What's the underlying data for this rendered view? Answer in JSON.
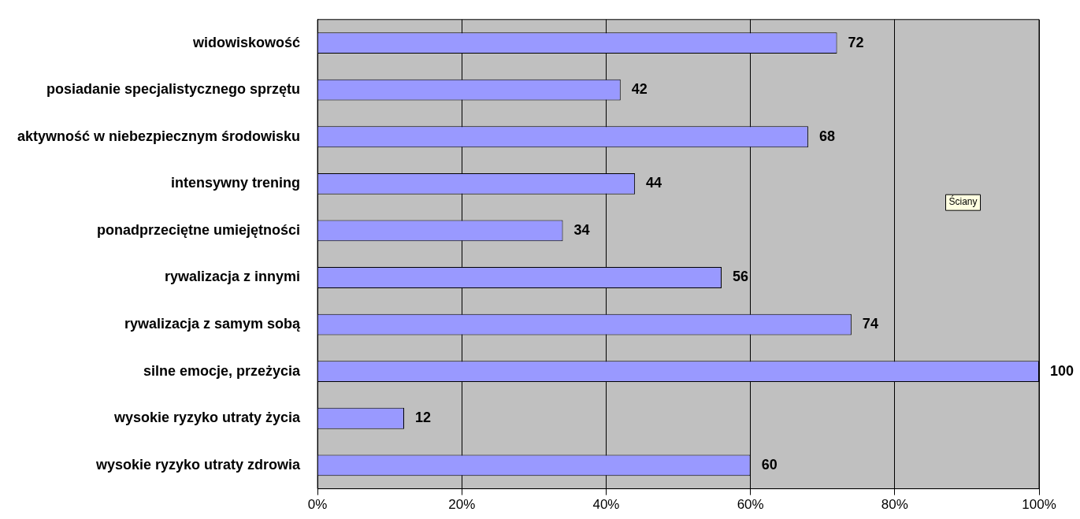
{
  "chart_data": {
    "type": "bar",
    "orientation": "horizontal",
    "categories": [
      "widowiskowość",
      "posiadanie specjalistycznego sprzętu",
      "aktywność w niebezpiecznym środowisku",
      "intensywny trening",
      "ponadprzeciętne umiejętności",
      "rywalizacja z innymi",
      "rywalizacja z samym sobą",
      "silne emocje, przeżycia",
      "wysokie ryzyko utraty życia",
      "wysokie ryzyko utraty zdrowia"
    ],
    "values": [
      72,
      42,
      68,
      44,
      34,
      56,
      74,
      100,
      12,
      60
    ],
    "color": "#9999ff",
    "xlim": [
      0,
      100
    ],
    "xticks": [
      {
        "value": 0,
        "label": "0%"
      },
      {
        "value": 20,
        "label": "20%"
      },
      {
        "value": 40,
        "label": "40%"
      },
      {
        "value": 60,
        "label": "60%"
      },
      {
        "value": 80,
        "label": "80%"
      },
      {
        "value": 100,
        "label": "100%"
      }
    ],
    "grid": "x",
    "legend": false,
    "data_labels": true,
    "annotations": [
      "Ściany"
    ]
  }
}
